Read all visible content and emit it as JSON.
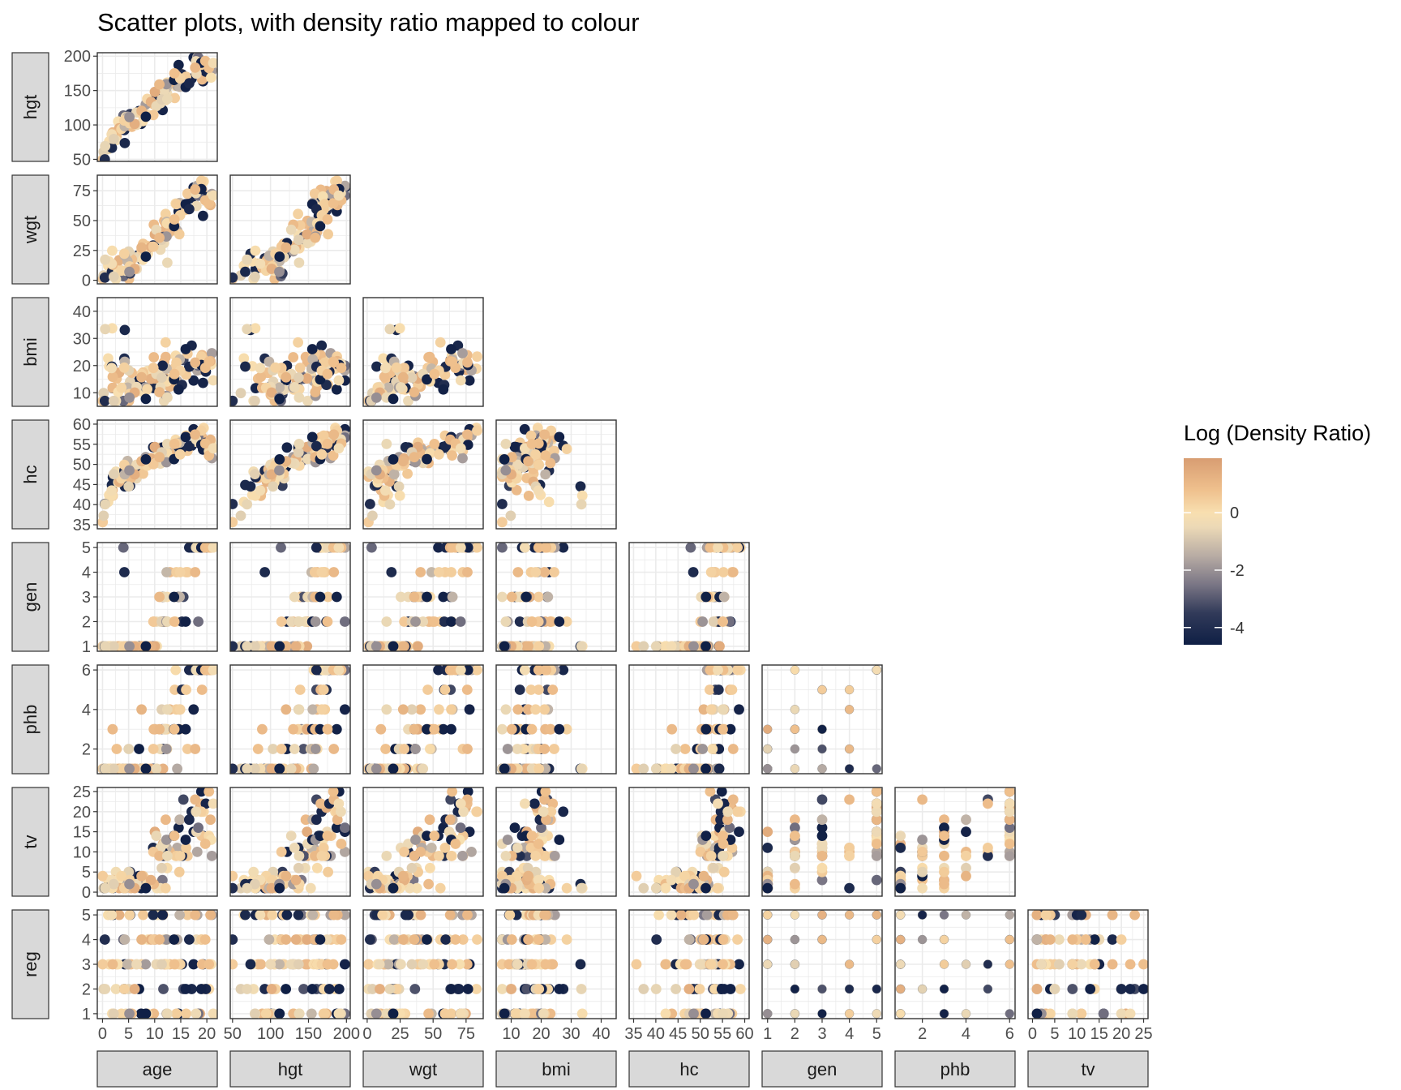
{
  "chart_data": {
    "type": "scatter",
    "title": "Scatter plots, with density ratio mapped to colour",
    "layout": "lower-triangle scatterplot matrix",
    "grid": true,
    "variables": [
      "hgt",
      "wgt",
      "bmi",
      "hc",
      "gen",
      "phb",
      "tv",
      "reg"
    ],
    "column_variables": [
      "age",
      "hgt",
      "wgt",
      "bmi",
      "hc",
      "gen",
      "phb",
      "tv"
    ],
    "row_variables": [
      "hgt",
      "wgt",
      "bmi",
      "hc",
      "gen",
      "phb",
      "tv",
      "reg"
    ],
    "axes": {
      "age": {
        "range": [
          -1,
          22
        ],
        "ticks": [
          0,
          5,
          10,
          15,
          20
        ],
        "tick_labels": [
          "0",
          "5",
          "10",
          "15",
          "20"
        ]
      },
      "hgt": {
        "range": [
          47,
          205
        ],
        "ticks": [
          50,
          100,
          150,
          200
        ],
        "tick_labels": [
          "50",
          "100",
          "150",
          "200"
        ]
      },
      "wgt": {
        "range": [
          -3,
          88
        ],
        "ticks": [
          0,
          25,
          50,
          75
        ],
        "tick_labels": [
          "0",
          "25",
          "50",
          "75"
        ]
      },
      "bmi": {
        "range": [
          5,
          45
        ],
        "ticks": [
          10,
          20,
          30,
          40
        ],
        "tick_labels": [
          "10",
          "20",
          "30",
          "40"
        ]
      },
      "hc": {
        "range": [
          34,
          61
        ],
        "ticks": [
          35,
          40,
          45,
          50,
          55,
          60
        ],
        "tick_labels": [
          "35",
          "40",
          "45",
          "50",
          "55",
          "60"
        ]
      },
      "gen": {
        "range": [
          0.8,
          5.2
        ],
        "ticks": [
          1,
          2,
          3,
          4,
          5
        ],
        "tick_labels": [
          "1",
          "2",
          "3",
          "4",
          "5"
        ]
      },
      "phb": {
        "range": [
          0.75,
          6.25
        ],
        "ticks": [
          2,
          4,
          6
        ],
        "tick_labels": [
          "2",
          "4",
          "6"
        ]
      },
      "tv": {
        "range": [
          -1,
          26
        ],
        "ticks": [
          0,
          5,
          10,
          15,
          20,
          25
        ],
        "tick_labels": [
          "0",
          "5",
          "10",
          "15",
          "20",
          "25"
        ]
      },
      "reg": {
        "range": [
          0.8,
          5.2
        ],
        "ticks": [
          1,
          2,
          3,
          4,
          5
        ],
        "tick_labels": [
          "1",
          "2",
          "3",
          "4",
          "5"
        ]
      }
    },
    "legend": {
      "title": "Log (Density Ratio)",
      "placement": "right",
      "range": [
        -4.6,
        1.9
      ],
      "ticks": [
        0,
        -2,
        -4
      ],
      "tick_labels": [
        "0",
        "-2",
        "-4"
      ],
      "colormap": [
        {
          "value": -4.6,
          "color": "#0f1f45"
        },
        {
          "value": -3.5,
          "color": "#313a59"
        },
        {
          "value": -2.5,
          "color": "#7a7685"
        },
        {
          "value": -1.5,
          "color": "#b8aca4"
        },
        {
          "value": -0.5,
          "color": "#ecd9b6"
        },
        {
          "value": 0.0,
          "color": "#f8dfb0"
        },
        {
          "value": 0.8,
          "color": "#efc08d"
        },
        {
          "value": 1.9,
          "color": "#d89d72"
        }
      ]
    },
    "points_per_panel": 110,
    "point_opacity": 1,
    "panel_background": "#ffffff",
    "grid_color": "#ebebeb",
    "strip_fill": "#d9d9d9",
    "strip_border": "#333333"
  }
}
